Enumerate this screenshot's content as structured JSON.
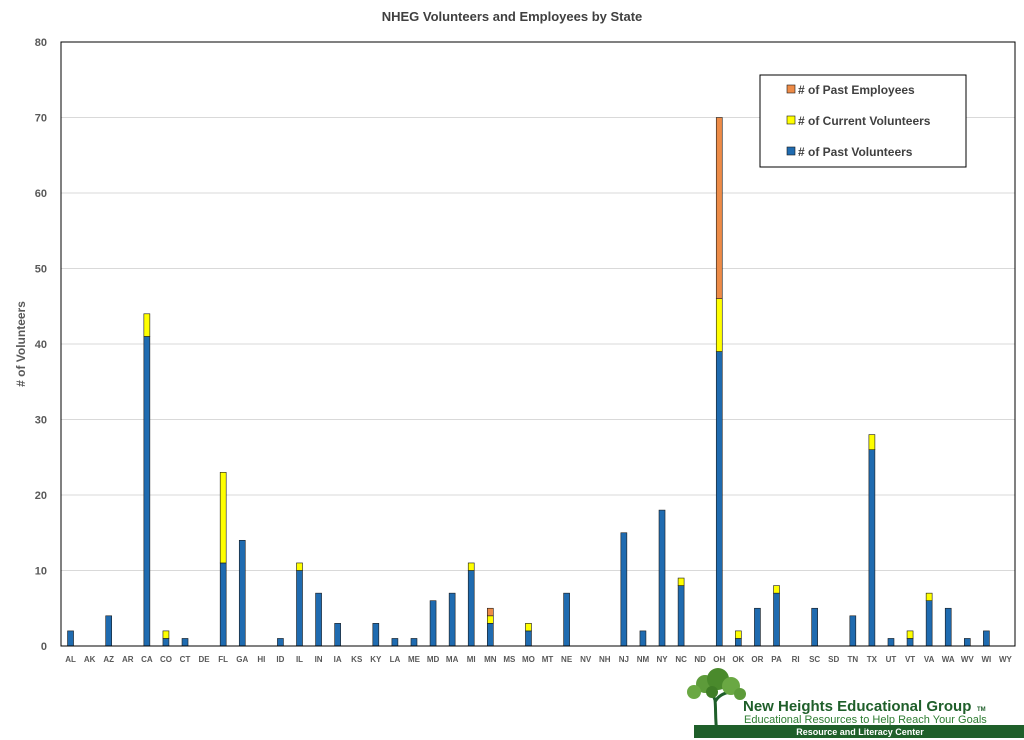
{
  "chart_data": {
    "type": "bar",
    "stacked": true,
    "title": "NHEG Volunteers and Employees by State",
    "xlabel": "",
    "ylabel": "# of Volunteers",
    "ylim": [
      0,
      80
    ],
    "yticks": [
      0,
      10,
      20,
      30,
      40,
      50,
      60,
      70,
      80
    ],
    "grid": true,
    "legend_position": "top-right",
    "categories": [
      "AL",
      "AK",
      "AZ",
      "AR",
      "CA",
      "CO",
      "CT",
      "DE",
      "FL",
      "GA",
      "HI",
      "ID",
      "IL",
      "IN",
      "IA",
      "KS",
      "KY",
      "LA",
      "ME",
      "MD",
      "MA",
      "MI",
      "MN",
      "MS",
      "MO",
      "MT",
      "NE",
      "NV",
      "NH",
      "NJ",
      "NM",
      "NY",
      "NC",
      "ND",
      "OH",
      "OK",
      "OR",
      "PA",
      "RI",
      "SC",
      "SD",
      "TN",
      "TX",
      "UT",
      "VT",
      "VA",
      "WA",
      "WV",
      "WI",
      "WY"
    ],
    "series": [
      {
        "name": "# of Past Volunteers",
        "color": "#1f6bb0",
        "values": [
          2,
          0,
          4,
          0,
          41,
          1,
          1,
          0,
          11,
          14,
          0,
          1,
          10,
          7,
          3,
          0,
          3,
          1,
          1,
          6,
          7,
          10,
          3,
          0,
          2,
          0,
          7,
          0,
          0,
          15,
          2,
          18,
          8,
          0,
          39,
          1,
          5,
          7,
          0,
          5,
          0,
          4,
          26,
          1,
          1,
          6,
          5,
          1,
          2,
          0
        ]
      },
      {
        "name": "# of Current Volunteers",
        "color": "#ffff00",
        "values": [
          0,
          0,
          0,
          0,
          3,
          1,
          0,
          0,
          12,
          0,
          0,
          0,
          1,
          0,
          0,
          0,
          0,
          0,
          0,
          0,
          0,
          1,
          1,
          0,
          1,
          0,
          0,
          0,
          0,
          0,
          0,
          0,
          1,
          0,
          7,
          1,
          0,
          1,
          0,
          0,
          0,
          0,
          2,
          0,
          1,
          1,
          0,
          0,
          0,
          0
        ]
      },
      {
        "name": "# of Past Employees",
        "color": "#ed8b47",
        "values": [
          0,
          0,
          0,
          0,
          0,
          0,
          0,
          0,
          0,
          0,
          0,
          0,
          0,
          0,
          0,
          0,
          0,
          0,
          0,
          0,
          0,
          0,
          1,
          0,
          0,
          0,
          0,
          0,
          0,
          0,
          0,
          0,
          0,
          0,
          24,
          0,
          0,
          0,
          0,
          0,
          0,
          0,
          0,
          0,
          0,
          0,
          0,
          0,
          0,
          0
        ]
      }
    ],
    "legend_order": [
      2,
      1,
      0
    ]
  },
  "logo": {
    "name": "New Heights Educational Group",
    "tm": "TM",
    "tagline": "Educational Resources to Help Reach Your Goals",
    "band": "Resource and Literacy Center",
    "color": "#1f5f2a"
  }
}
